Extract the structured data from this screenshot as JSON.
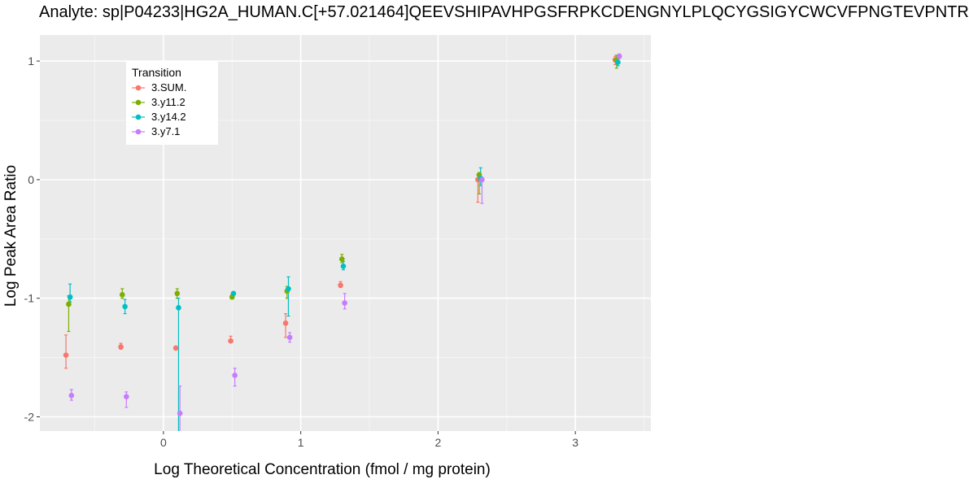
{
  "chart_data": {
    "type": "scatter",
    "title": "Analyte: sp|P04233|HG2A_HUMAN.C[+57.021464]QEEVSHIPAVHPGSFRPKCDENGNYLPLQCYGSIGYCWCVFPNGTEVPNTR",
    "xlabel": "Log Theoretical Concentration (fmol / mg protein)",
    "ylabel": "Log Peak Area Ratio",
    "xlim": [
      -0.9,
      3.55
    ],
    "ylim": [
      -2.12,
      1.22
    ],
    "x_ticks": [
      0,
      1,
      2,
      3
    ],
    "y_ticks": [
      -2,
      -1,
      0,
      1
    ],
    "grid": true,
    "legend_title": "Transition",
    "legend_position": "top-left",
    "series": [
      {
        "name": "3.SUM.",
        "color": "#F8766D",
        "points": [
          {
            "x": -0.71,
            "y": -1.48,
            "ylo": -1.59,
            "yhi": -1.31
          },
          {
            "x": -0.31,
            "y": -1.41,
            "ylo": -1.43,
            "yhi": -1.38
          },
          {
            "x": 0.09,
            "y": -1.42,
            "ylo": -1.42,
            "yhi": -1.42
          },
          {
            "x": 0.49,
            "y": -1.36,
            "ylo": -1.37,
            "yhi": -1.32
          },
          {
            "x": 0.89,
            "y": -1.21,
            "ylo": -1.33,
            "yhi": -1.13
          },
          {
            "x": 1.29,
            "y": -0.89,
            "ylo": -0.91,
            "yhi": -0.86
          },
          {
            "x": 2.29,
            "y": 0.0,
            "ylo": -0.19,
            "yhi": 0.04
          },
          {
            "x": 3.29,
            "y": 1.01,
            "ylo": 0.97,
            "yhi": 1.04
          }
        ]
      },
      {
        "name": "3.y11.2",
        "color": "#7CAE00",
        "points": [
          {
            "x": -0.69,
            "y": -1.05,
            "ylo": -1.28,
            "yhi": -0.98
          },
          {
            "x": -0.3,
            "y": -0.97,
            "ylo": -1.0,
            "yhi": -0.92
          },
          {
            "x": 0.1,
            "y": -0.96,
            "ylo": -1.0,
            "yhi": -0.92
          },
          {
            "x": 0.5,
            "y": -0.99,
            "ylo": -1.0,
            "yhi": -0.97
          },
          {
            "x": 0.9,
            "y": -0.94,
            "ylo": -1.0,
            "yhi": -0.9
          },
          {
            "x": 1.3,
            "y": -0.67,
            "ylo": -0.7,
            "yhi": -0.63
          },
          {
            "x": 2.3,
            "y": 0.04,
            "ylo": -0.12,
            "yhi": 0.06
          },
          {
            "x": 3.3,
            "y": 1.01,
            "ylo": 0.94,
            "yhi": 1.05
          }
        ]
      },
      {
        "name": "3.y14.2",
        "color": "#00BFC4",
        "points": [
          {
            "x": -0.68,
            "y": -0.99,
            "ylo": -1.03,
            "yhi": -0.88
          },
          {
            "x": -0.28,
            "y": -1.07,
            "ylo": -1.13,
            "yhi": -1.01
          },
          {
            "x": 0.11,
            "y": -1.08,
            "ylo": -2.12,
            "yhi": -1.0
          },
          {
            "x": 0.51,
            "y": -0.96,
            "ylo": -0.97,
            "yhi": -0.95
          },
          {
            "x": 0.91,
            "y": -0.92,
            "ylo": -1.15,
            "yhi": -0.82
          },
          {
            "x": 1.31,
            "y": -0.73,
            "ylo": -0.76,
            "yhi": -0.69
          },
          {
            "x": 2.31,
            "y": 0.01,
            "ylo": -0.05,
            "yhi": 0.1
          },
          {
            "x": 3.31,
            "y": 0.99,
            "ylo": 0.96,
            "yhi": 1.03
          }
        ]
      },
      {
        "name": "3.y7.1",
        "color": "#C77CFF",
        "points": [
          {
            "x": -0.67,
            "y": -1.82,
            "ylo": -1.86,
            "yhi": -1.77
          },
          {
            "x": -0.27,
            "y": -1.83,
            "ylo": -1.92,
            "yhi": -1.79
          },
          {
            "x": 0.12,
            "y": -1.97,
            "ylo": -2.12,
            "yhi": -1.74
          },
          {
            "x": 0.52,
            "y": -1.65,
            "ylo": -1.74,
            "yhi": -1.59
          },
          {
            "x": 0.92,
            "y": -1.33,
            "ylo": -1.37,
            "yhi": -1.29
          },
          {
            "x": 1.32,
            "y": -1.04,
            "ylo": -1.09,
            "yhi": -0.96
          },
          {
            "x": 2.32,
            "y": 0.0,
            "ylo": -0.2,
            "yhi": 0.02
          },
          {
            "x": 3.32,
            "y": 1.04,
            "ylo": 1.02,
            "yhi": 1.06
          }
        ]
      }
    ]
  },
  "colors": {
    "panel_background": "#EBEBEB",
    "grid_major": "#FFFFFF",
    "grid_minor": "#F5F5F5",
    "tick": "#333333"
  }
}
